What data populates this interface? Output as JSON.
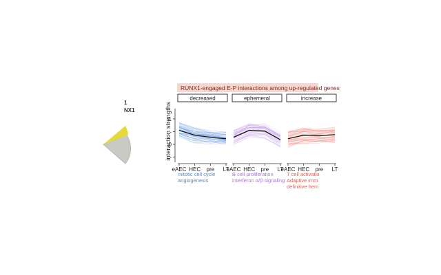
{
  "left_fragment": {
    "label_line1": "1",
    "label_line2": "NX1",
    "pie_colors": {
      "gray": "#c9cbc2",
      "yellow": "#e6d93b",
      "rim": "#b5b8ad"
    }
  },
  "chart_data": {
    "type": "line",
    "title": "RUNX1-engaged E-P interactions among up-regulated genes",
    "ylabel": "interaction strengths",
    "ylim": [
      -0.7,
      1.4
    ],
    "yticks": [
      "-",
      "0",
      "-",
      "1"
    ],
    "ytick_values": [
      -0.5,
      0,
      0.5,
      1
    ],
    "categories": [
      "eAEC",
      "HEC",
      "pre",
      "LT"
    ],
    "grid": false,
    "panels": [
      {
        "name": "decreased",
        "color": "#6b9be3",
        "mean": [
          0.55,
          0.36,
          0.28,
          0.22
        ],
        "spread": [
          0.28,
          0.26,
          0.22,
          0.22
        ],
        "n_lines": 42,
        "terms": [
          "mitotic cell cycle",
          "angiogenesis"
        ],
        "term_color": "#5b86c9"
      },
      {
        "name": "ephemeral",
        "color": "#c8a4ea",
        "mean": [
          0.28,
          0.55,
          0.52,
          0.18
        ],
        "spread": [
          0.22,
          0.22,
          0.22,
          0.22
        ],
        "n_lines": 42,
        "terms": [
          "B cell proliferation",
          "interferon α/β signaling"
        ],
        "term_color": "#a57ad4"
      },
      {
        "name": "increase",
        "color": "#f08a84",
        "mean": [
          0.22,
          0.36,
          0.34,
          0.38
        ],
        "spread": [
          0.28,
          0.28,
          0.26,
          0.26
        ],
        "n_lines": 42,
        "terms": [
          "T cell activatio",
          "Adaptive imm",
          "definitive hem"
        ],
        "term_color": "#d9655e"
      }
    ],
    "mean_line_color": "#111111",
    "header_fill": "#f7d6cc",
    "header_text_color": "#7a2c2c"
  }
}
